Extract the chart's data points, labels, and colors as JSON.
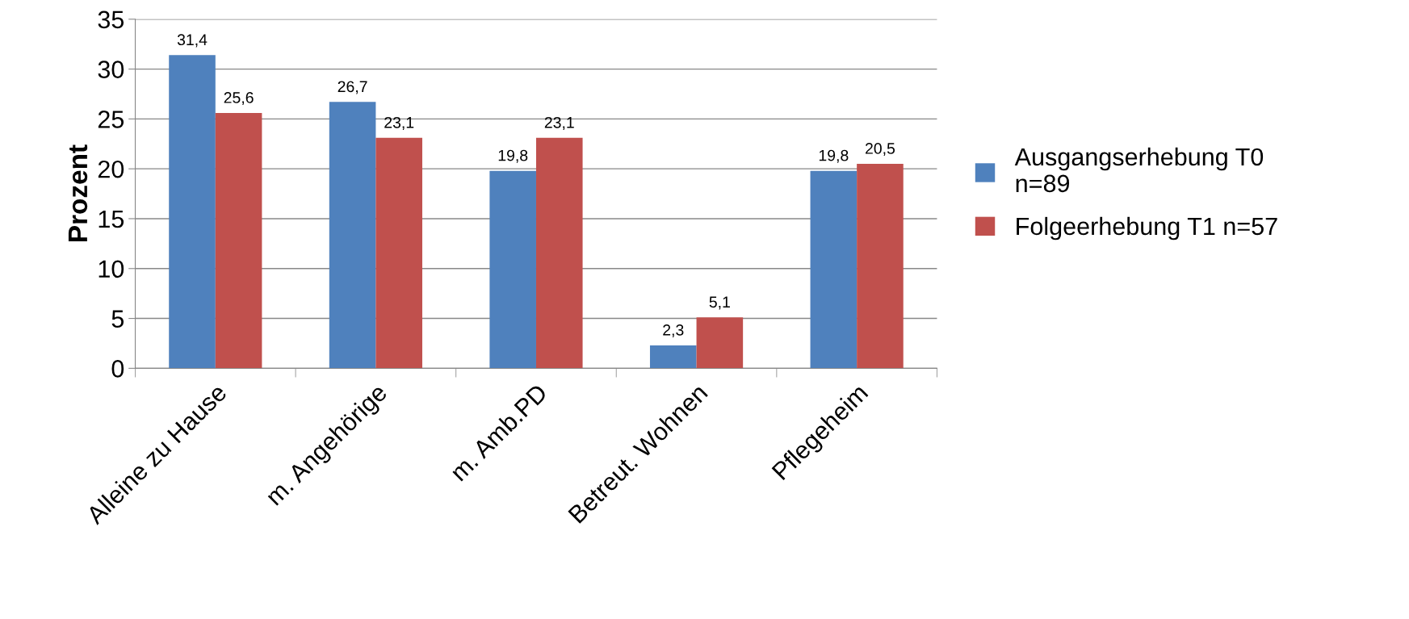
{
  "chart_data": {
    "type": "bar",
    "ylabel": "Prozent",
    "categories": [
      "Alleine zu Hause",
      "m. Angehörige",
      "m. Amb.PD",
      "Betreut. Wohnen",
      "Pflegeheim"
    ],
    "series": [
      {
        "name": "Ausgangserhebung T0\nn=89",
        "color": "#4f81bd",
        "values": [
          31.4,
          26.7,
          19.8,
          2.3,
          19.8
        ],
        "value_labels": [
          "31,4",
          "26,7",
          "19,8",
          "2,3",
          "19,8"
        ]
      },
      {
        "name": "Folgeerhebung T1 n=57",
        "color": "#c0504d",
        "values": [
          25.6,
          23.1,
          23.1,
          5.1,
          20.5
        ],
        "value_labels": [
          "25,6",
          "23,1",
          "23,1",
          "5,1",
          "20,5"
        ]
      }
    ],
    "ylim": [
      0,
      35
    ],
    "yticks": [
      0,
      5,
      10,
      15,
      20,
      25,
      30,
      35
    ],
    "grid": "y",
    "legend": "right"
  }
}
